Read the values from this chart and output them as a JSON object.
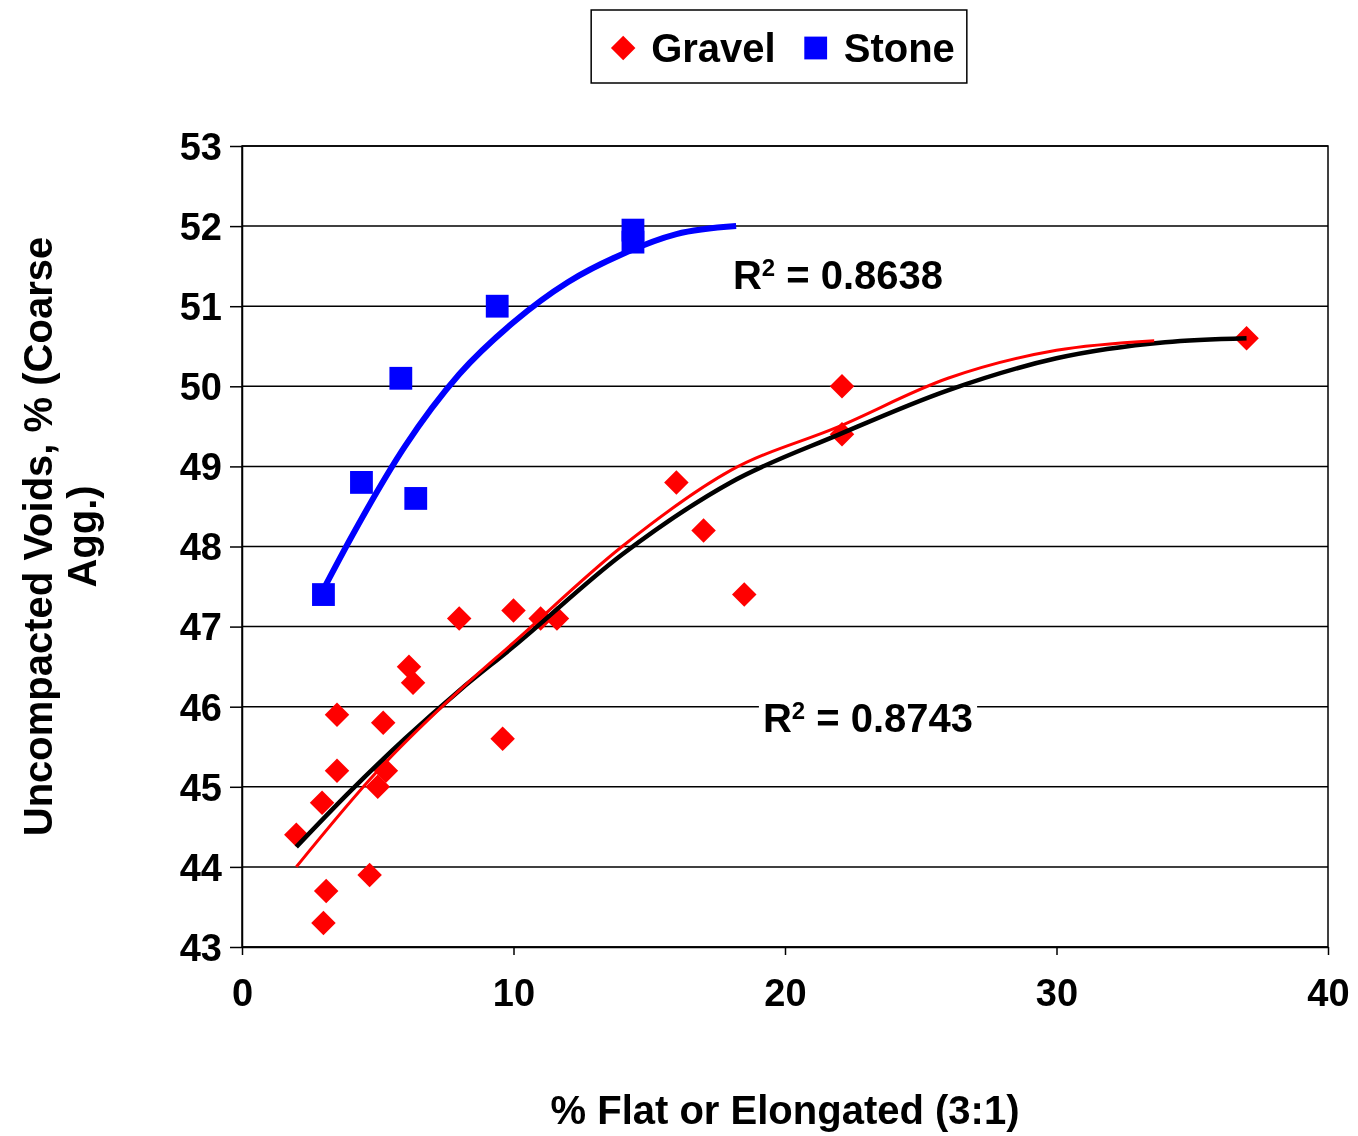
{
  "chart_data": {
    "type": "scatter",
    "xlabel": "% Flat or Elongated (3:1)",
    "ylabel": "Uncompacted Voids, % (Coarse Agg.)",
    "xlim": [
      0,
      40
    ],
    "xticks": [
      0,
      10,
      20,
      30,
      40
    ],
    "ylim": [
      43,
      53
    ],
    "yticks": [
      43,
      44,
      45,
      46,
      47,
      48,
      49,
      50,
      51,
      52,
      53
    ],
    "grid": "y",
    "legend": "top",
    "series": [
      {
        "name": "Gravel",
        "marker": "diamond",
        "color": "#ff0000",
        "x": [
          2,
          2.95,
          3.1,
          3,
          3.5,
          3.5,
          4.7,
          5.2,
          5.3,
          5,
          6.15,
          6.3,
          8,
          9.6,
          10,
          11,
          11.6,
          16,
          17,
          18.5,
          22.1,
          22.1,
          37
        ],
        "values": [
          44.4,
          44.8,
          43.7,
          43.3,
          45.9,
          45.2,
          43.9,
          45.8,
          45.2,
          45,
          46.5,
          46.3,
          47.1,
          45.6,
          47.2,
          47.1,
          47.1,
          48.8,
          48.2,
          47.4,
          50,
          49.4,
          50.6
        ]
      },
      {
        "name": "Stone",
        "marker": "square",
        "color": "#0000ff",
        "x": [
          3,
          4.4,
          5.85,
          6.4,
          9.4,
          14.4,
          14.4
        ],
        "values": [
          47.4,
          48.8,
          50.1,
          48.6,
          51,
          51.95,
          51.8
        ]
      },
      {
        "type": "line",
        "marker": "none",
        "color": "#0000ff",
        "x": [
          2.9,
          4,
          6,
          8,
          10,
          12,
          14,
          16,
          18.2
        ],
        "values": [
          47.4,
          48.1,
          49.25,
          50.15,
          50.8,
          51.3,
          51.65,
          51.9,
          52
        ]
      },
      {
        "type": "line",
        "marker": "none",
        "color": "#000000",
        "x": [
          2,
          4,
          6,
          8,
          10,
          14,
          18,
          22,
          26,
          30,
          34,
          37
        ],
        "values": [
          44.25,
          44.95,
          45.6,
          46.2,
          46.75,
          47.9,
          48.8,
          49.4,
          49.95,
          50.35,
          50.55,
          50.6
        ]
      },
      {
        "type": "line",
        "marker": "none",
        "color": "#ff0000",
        "x": [
          2,
          5,
          8,
          10,
          14,
          18,
          22,
          26,
          30,
          33.6
        ],
        "values": [
          44,
          45.2,
          46.2,
          46.8,
          48,
          48.95,
          49.5,
          50.1,
          50.45,
          50.57
        ]
      }
    ],
    "annotations": [
      "R$^{2}$ = 0.8638",
      "R$^{2}$ = 0.8743"
    ]
  }
}
